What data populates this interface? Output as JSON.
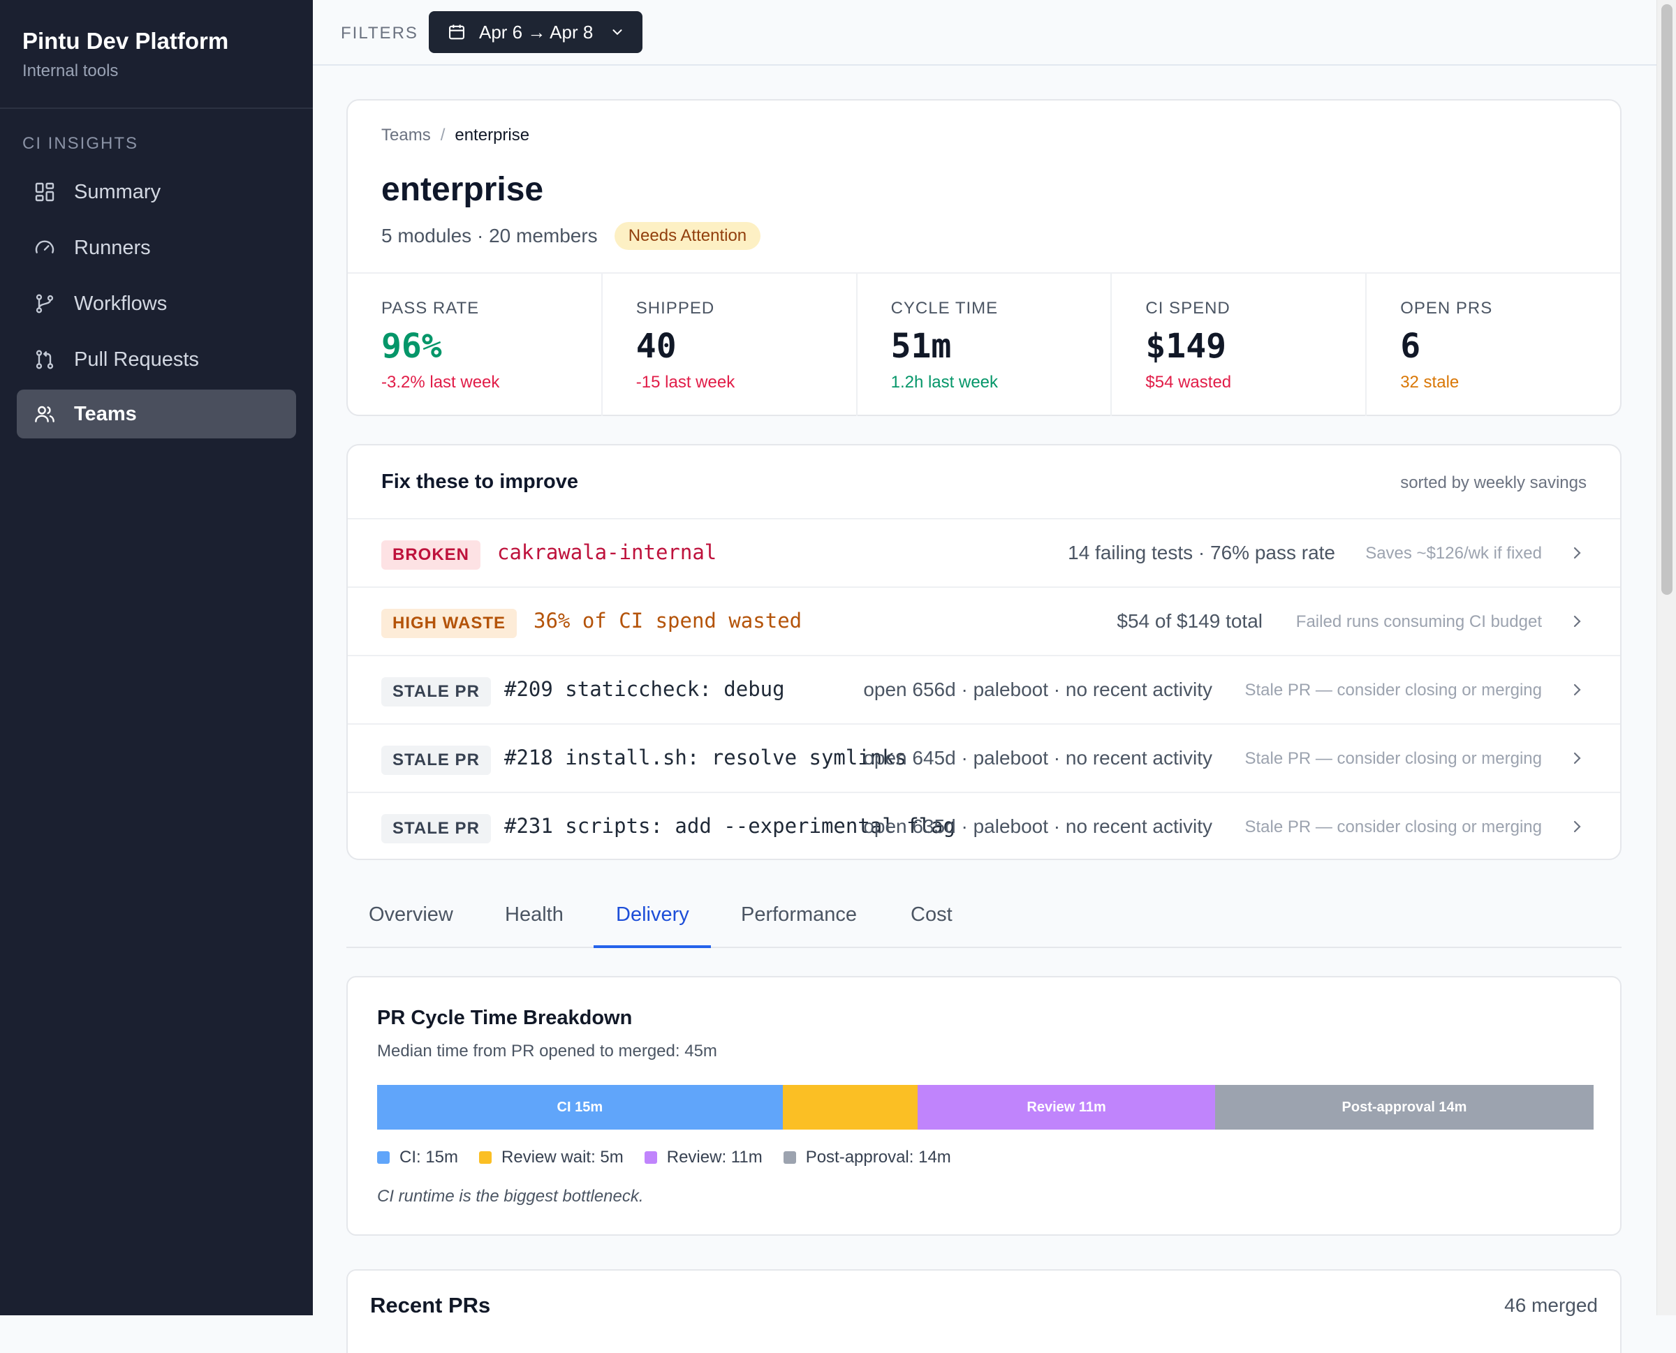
{
  "app": {
    "title": "Pintu Dev Platform",
    "subtitle": "Internal tools"
  },
  "sidebar": {
    "section": "CI INSIGHTS",
    "items": [
      {
        "label": "Summary",
        "icon": "grid-icon",
        "active": false
      },
      {
        "label": "Runners",
        "icon": "gauge-icon",
        "active": false
      },
      {
        "label": "Workflows",
        "icon": "branch-icon",
        "active": false
      },
      {
        "label": "Pull Requests",
        "icon": "pull-request-icon",
        "active": false
      },
      {
        "label": "Teams",
        "icon": "users-icon",
        "active": true
      }
    ]
  },
  "filters": {
    "label": "FILTERS",
    "date_range": "Apr 6 → Apr 8"
  },
  "breadcrumb": {
    "parent": "Teams",
    "separator": "/",
    "current": "enterprise"
  },
  "team": {
    "name": "enterprise",
    "meta": "5 modules · 20 members",
    "status": "Needs Attention"
  },
  "stats": [
    {
      "label": "PASS RATE",
      "value": "96%",
      "delta": "-3.2% last week",
      "value_color": "#059669",
      "delta_color": "#e11d48"
    },
    {
      "label": "SHIPPED",
      "value": "40",
      "delta": "-15 last week",
      "value_color": "#111827",
      "delta_color": "#e11d48"
    },
    {
      "label": "CYCLE TIME",
      "value": "51m",
      "delta": "1.2h last week",
      "value_color": "#111827",
      "delta_color": "#059669"
    },
    {
      "label": "CI SPEND",
      "value": "$149",
      "delta": "$54 wasted",
      "value_color": "#111827",
      "delta_color": "#e11d48"
    },
    {
      "label": "OPEN PRS",
      "value": "6",
      "delta": "32 stale",
      "value_color": "#111827",
      "delta_color": "#d97706"
    }
  ],
  "fixes": {
    "title": "Fix these to improve",
    "sort_note": "sorted by weekly savings",
    "rows": [
      {
        "tag": "BROKEN",
        "tag_type": "broken",
        "title": "cakrawala-internal",
        "meta": "14 failing tests · 76% pass rate",
        "hint": "Saves ~$126/wk if fixed"
      },
      {
        "tag": "HIGH WASTE",
        "tag_type": "waste",
        "title": "36% of CI spend wasted",
        "meta": "$54 of $149 total",
        "hint": "Failed runs consuming CI budget"
      },
      {
        "tag": "STALE PR",
        "tag_type": "stale",
        "title": "#209 staticcheck: debug",
        "meta": "open 656d · paleboot · no recent activity",
        "hint": "Stale PR — consider closing or merging"
      },
      {
        "tag": "STALE PR",
        "tag_type": "stale",
        "title": "#218 install.sh: resolve symlinks",
        "meta": "open 645d · paleboot · no recent activity",
        "hint": "Stale PR — consider closing or merging"
      },
      {
        "tag": "STALE PR",
        "tag_type": "stale",
        "title": "#231 scripts: add --experimental flag",
        "meta": "open 635d · paleboot · no recent activity",
        "hint": "Stale PR — consider closing or merging"
      }
    ]
  },
  "tabs": [
    {
      "label": "Overview",
      "active": false
    },
    {
      "label": "Health",
      "active": false
    },
    {
      "label": "Delivery",
      "active": true
    },
    {
      "label": "Performance",
      "active": false
    },
    {
      "label": "Cost",
      "active": false
    }
  ],
  "cycle": {
    "title": "PR Cycle Time Breakdown",
    "subtitle": "Median time from PR opened to merged: 45m",
    "segments": [
      {
        "bar_label": "CI 15m",
        "legend": "CI: 15m",
        "minutes": 15,
        "color": "#60a5fa"
      },
      {
        "bar_label": "",
        "legend": "Review wait: 5m",
        "minutes": 5,
        "color": "#fbbf24"
      },
      {
        "bar_label": "Review 11m",
        "legend": "Review: 11m",
        "minutes": 11,
        "color": "#c084fc"
      },
      {
        "bar_label": "Post-approval 14m",
        "legend": "Post-approval: 14m",
        "minutes": 14,
        "color": "#9ca3af"
      }
    ],
    "note": "CI runtime is the biggest bottleneck."
  },
  "recent": {
    "title": "Recent PRs",
    "count": "46 merged"
  }
}
